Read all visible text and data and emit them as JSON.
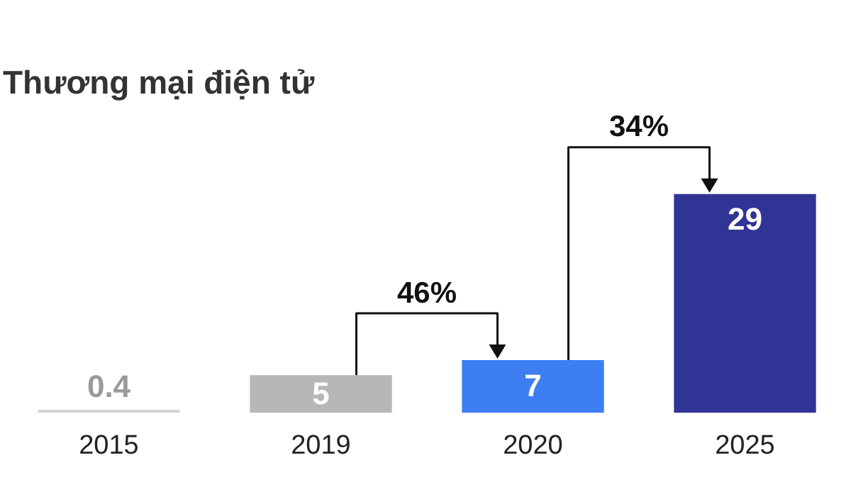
{
  "chart_data": {
    "type": "bar",
    "title": "Thương mại điện tử",
    "categories": [
      "2015",
      "2019",
      "2020",
      "2025"
    ],
    "values": [
      0.4,
      5,
      7,
      29
    ],
    "colors": [
      "#d3d3d3",
      "#b7b7b7",
      "#3d7ef2",
      "#303494"
    ],
    "data_labels": true,
    "annotations": [
      "46%",
      "34%"
    ],
    "grid": false,
    "legend": false
  }
}
